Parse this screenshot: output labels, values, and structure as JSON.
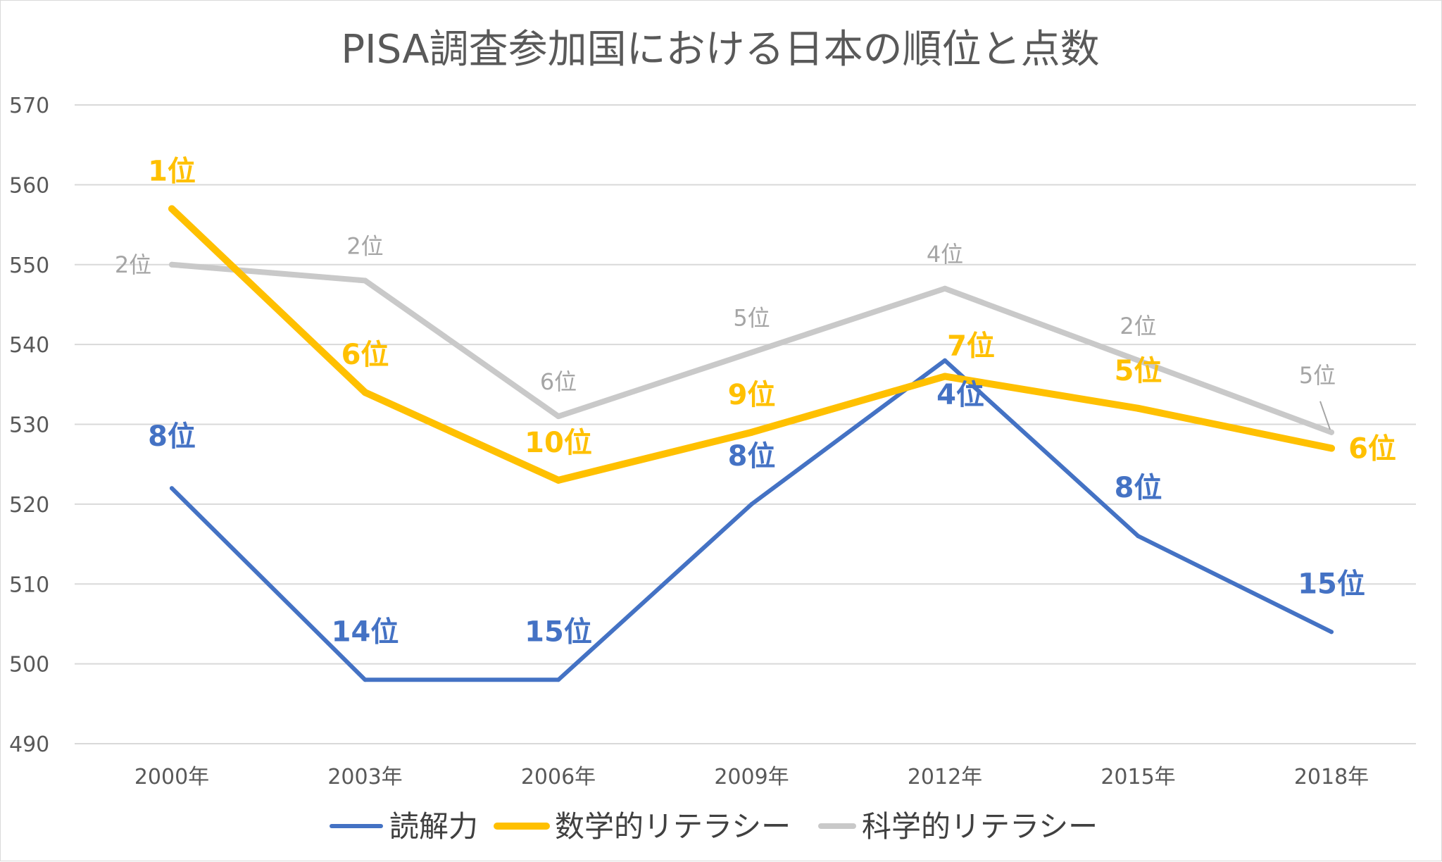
{
  "chart_data": {
    "type": "line",
    "title": "PISA調査参加国における日本の順位と点数",
    "xlabel": "",
    "ylabel": "",
    "categories": [
      "2000年",
      "2003年",
      "2006年",
      "2009年",
      "2012年",
      "2015年",
      "2018年"
    ],
    "ylim": [
      490,
      570
    ],
    "yticks": [
      570,
      560,
      550,
      540,
      530,
      520,
      510,
      500,
      490
    ],
    "grid": true,
    "legend_position": "bottom",
    "series": [
      {
        "name": "読解力",
        "color": "#4472C4",
        "values": [
          522,
          498,
          498,
          520,
          538,
          516,
          504
        ],
        "labels": [
          "8位",
          "14位",
          "15位",
          "8位",
          "4位",
          "8位",
          "15位"
        ]
      },
      {
        "name": "数学的リテラシー",
        "color": "#FFC000",
        "values": [
          557,
          534,
          523,
          529,
          536,
          532,
          527
        ],
        "labels": [
          "1位",
          "6位",
          "10位",
          "9位",
          "7位",
          "5位",
          "6位"
        ]
      },
      {
        "name": "科学的リテラシー",
        "color": "#C9C9C9",
        "values": [
          550,
          548,
          531,
          539,
          547,
          538,
          529
        ],
        "labels": [
          "2位",
          "2位",
          "6位",
          "5位",
          "4位",
          "2位",
          "5位"
        ]
      }
    ]
  },
  "label_colors": {
    "読解力": "#4472C4",
    "数学的リテラシー": "#FFC000",
    "科学的リテラシー": "#A5A5A5"
  }
}
